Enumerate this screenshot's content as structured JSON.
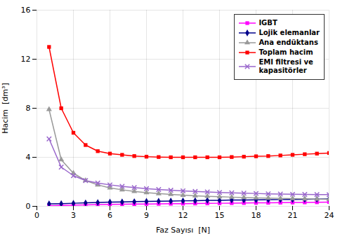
{
  "chart_data": {
    "type": "line",
    "xlabel": "Faz Sayısı  [N]",
    "ylabel": "Hacim  [dm³]",
    "x": [
      1,
      2,
      3,
      4,
      5,
      6,
      7,
      8,
      9,
      10,
      11,
      12,
      13,
      14,
      15,
      16,
      17,
      18,
      19,
      20,
      21,
      22,
      23,
      24
    ],
    "series": [
      {
        "name": "IGBT",
        "color": "#ff00ff",
        "marker": "square",
        "values": [
          0.05,
          0.07,
          0.1,
          0.12,
          0.14,
          0.16,
          0.17,
          0.18,
          0.19,
          0.2,
          0.21,
          0.22,
          0.23,
          0.24,
          0.25,
          0.26,
          0.27,
          0.28,
          0.29,
          0.3,
          0.31,
          0.32,
          0.33,
          0.35
        ]
      },
      {
        "name": "Lojik elemanlar",
        "color": "#00008b",
        "marker": "diamond",
        "values": [
          0.2,
          0.22,
          0.25,
          0.28,
          0.31,
          0.34,
          0.36,
          0.38,
          0.4,
          0.42,
          0.43,
          0.45,
          0.46,
          0.48,
          0.49,
          0.51,
          0.52,
          0.53,
          0.54,
          0.55,
          0.56,
          0.57,
          0.58,
          0.6
        ]
      },
      {
        "name": "Ana endüktans",
        "color": "#999999",
        "marker": "triangle",
        "values": [
          7.9,
          3.8,
          2.7,
          2.1,
          1.75,
          1.5,
          1.35,
          1.22,
          1.12,
          1.04,
          0.97,
          0.91,
          0.86,
          0.82,
          0.78,
          0.75,
          0.72,
          0.69,
          0.67,
          0.65,
          0.63,
          0.61,
          0.59,
          0.57
        ]
      },
      {
        "name": "Toplam hacim",
        "color": "#ff0000",
        "marker": "square",
        "values": [
          13.0,
          8.0,
          6.0,
          5.0,
          4.5,
          4.3,
          4.2,
          4.1,
          4.05,
          4.02,
          4.0,
          4.0,
          4.0,
          4.0,
          4.0,
          4.02,
          4.05,
          4.08,
          4.1,
          4.15,
          4.2,
          4.25,
          4.3,
          4.35
        ]
      },
      {
        "name": "EMI filtresi ve\nkapasitörler",
        "color": "#9966cc",
        "marker": "x",
        "values": [
          5.5,
          3.2,
          2.5,
          2.1,
          1.9,
          1.75,
          1.63,
          1.53,
          1.44,
          1.37,
          1.31,
          1.26,
          1.21,
          1.17,
          1.13,
          1.1,
          1.07,
          1.05,
          1.02,
          1.0,
          0.98,
          0.97,
          0.96,
          0.95
        ]
      }
    ],
    "xlim": [
      0,
      24
    ],
    "ylim": [
      0,
      16
    ],
    "xticks": [
      0,
      3,
      6,
      9,
      12,
      15,
      18,
      21,
      24
    ],
    "yticks": [
      0,
      4,
      8,
      12,
      16
    ],
    "grid": true,
    "legend": "upper right"
  }
}
